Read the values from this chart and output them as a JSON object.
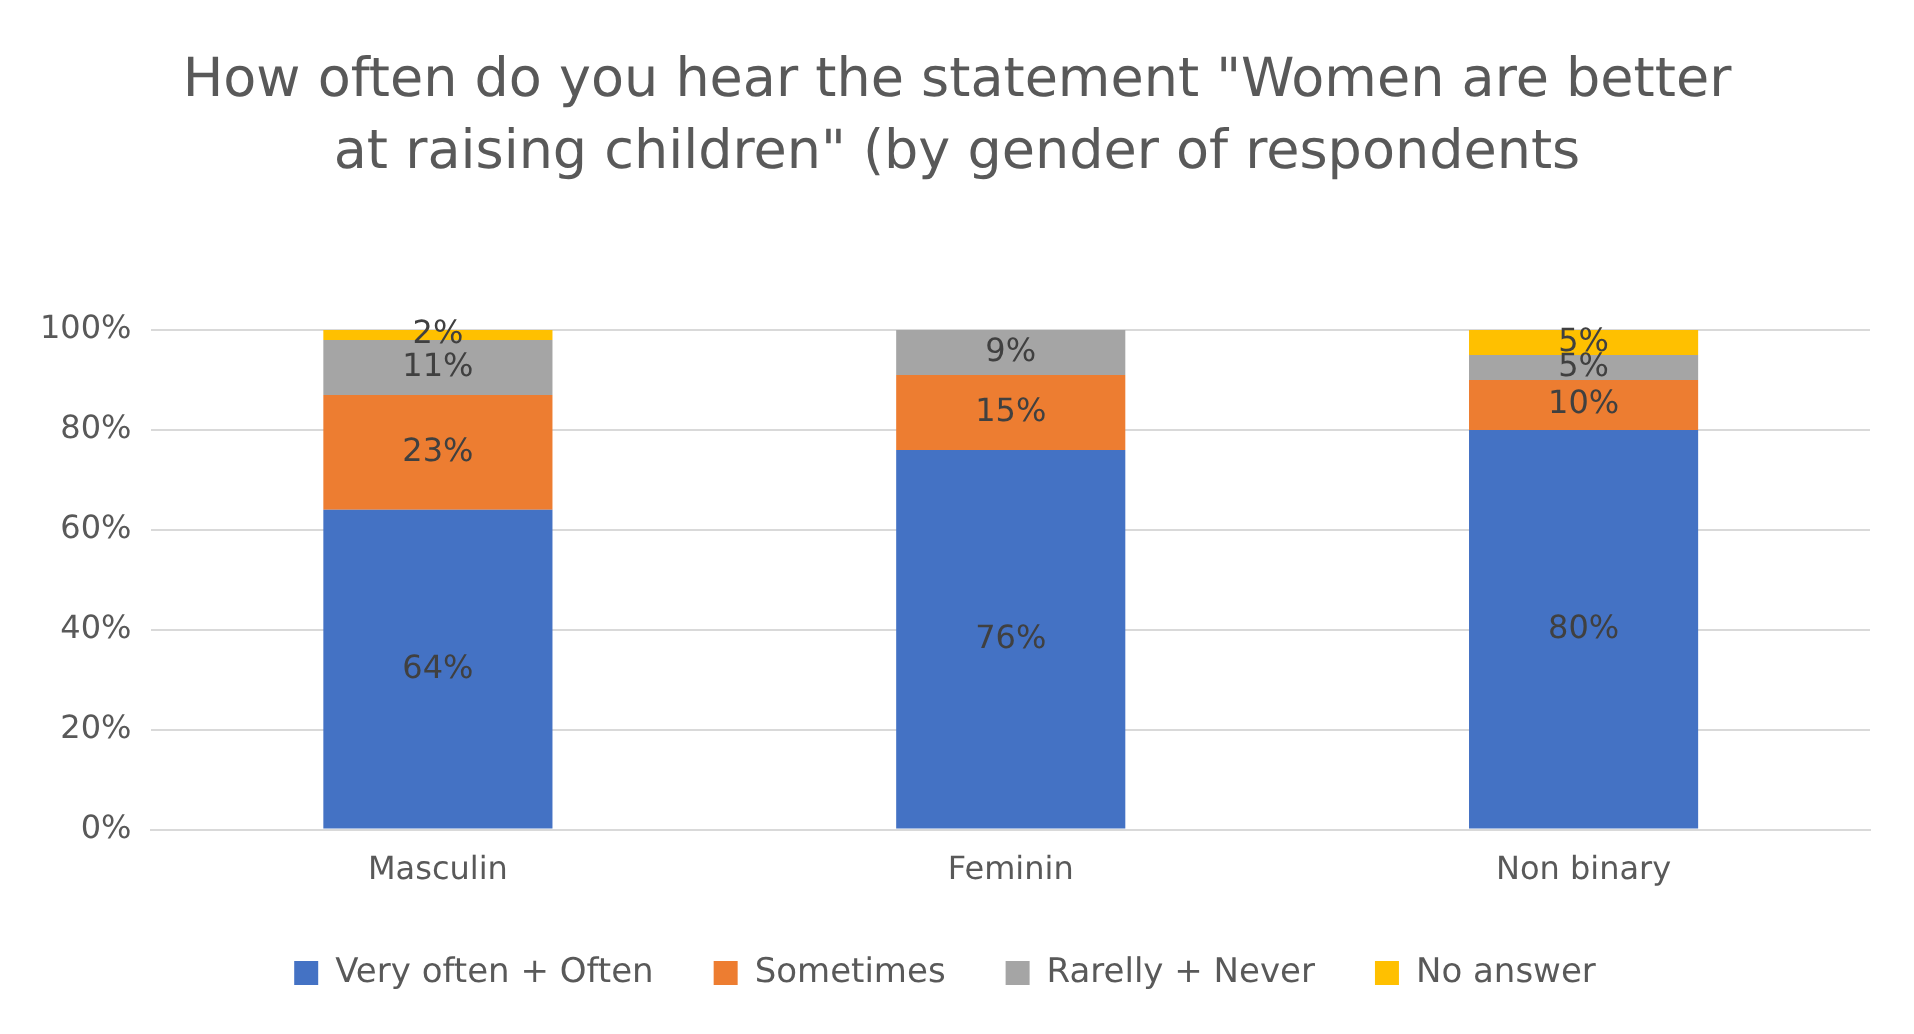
{
  "chart_data": {
    "type": "bar",
    "title": "How often do you hear the statement \"Women are better at raising children\" (by gender of respondents",
    "categories": [
      "Masculin",
      "Feminin",
      "Non binary"
    ],
    "stacked": true,
    "series": [
      {
        "name": "Very often + Often",
        "color": "#4472c4",
        "values": [
          64,
          76,
          80
        ],
        "value_labels": [
          "64%",
          "76%",
          "80%"
        ]
      },
      {
        "name": "Sometimes",
        "color": "#ed7d31",
        "values": [
          23,
          15,
          10
        ],
        "value_labels": [
          "23%",
          "15%",
          "10%"
        ]
      },
      {
        "name": "Rarelly + Never",
        "color": "#a5a5a5",
        "values": [
          11,
          9,
          5
        ],
        "value_labels": [
          "11%",
          "9%",
          "5%"
        ]
      },
      {
        "name": "No answer",
        "color": "#ffc000",
        "values": [
          2,
          null,
          5
        ],
        "value_labels": [
          "2%",
          null,
          "5%"
        ]
      }
    ],
    "ylim": [
      0,
      100
    ],
    "yticks": [
      {
        "value": 0,
        "label": "0%"
      },
      {
        "value": 20,
        "label": "20%"
      },
      {
        "value": 40,
        "label": "40%"
      },
      {
        "value": 60,
        "label": "60%"
      },
      {
        "value": 80,
        "label": "80%"
      },
      {
        "value": 100,
        "label": "100%"
      }
    ],
    "grid": "y",
    "legend": "bottom"
  }
}
